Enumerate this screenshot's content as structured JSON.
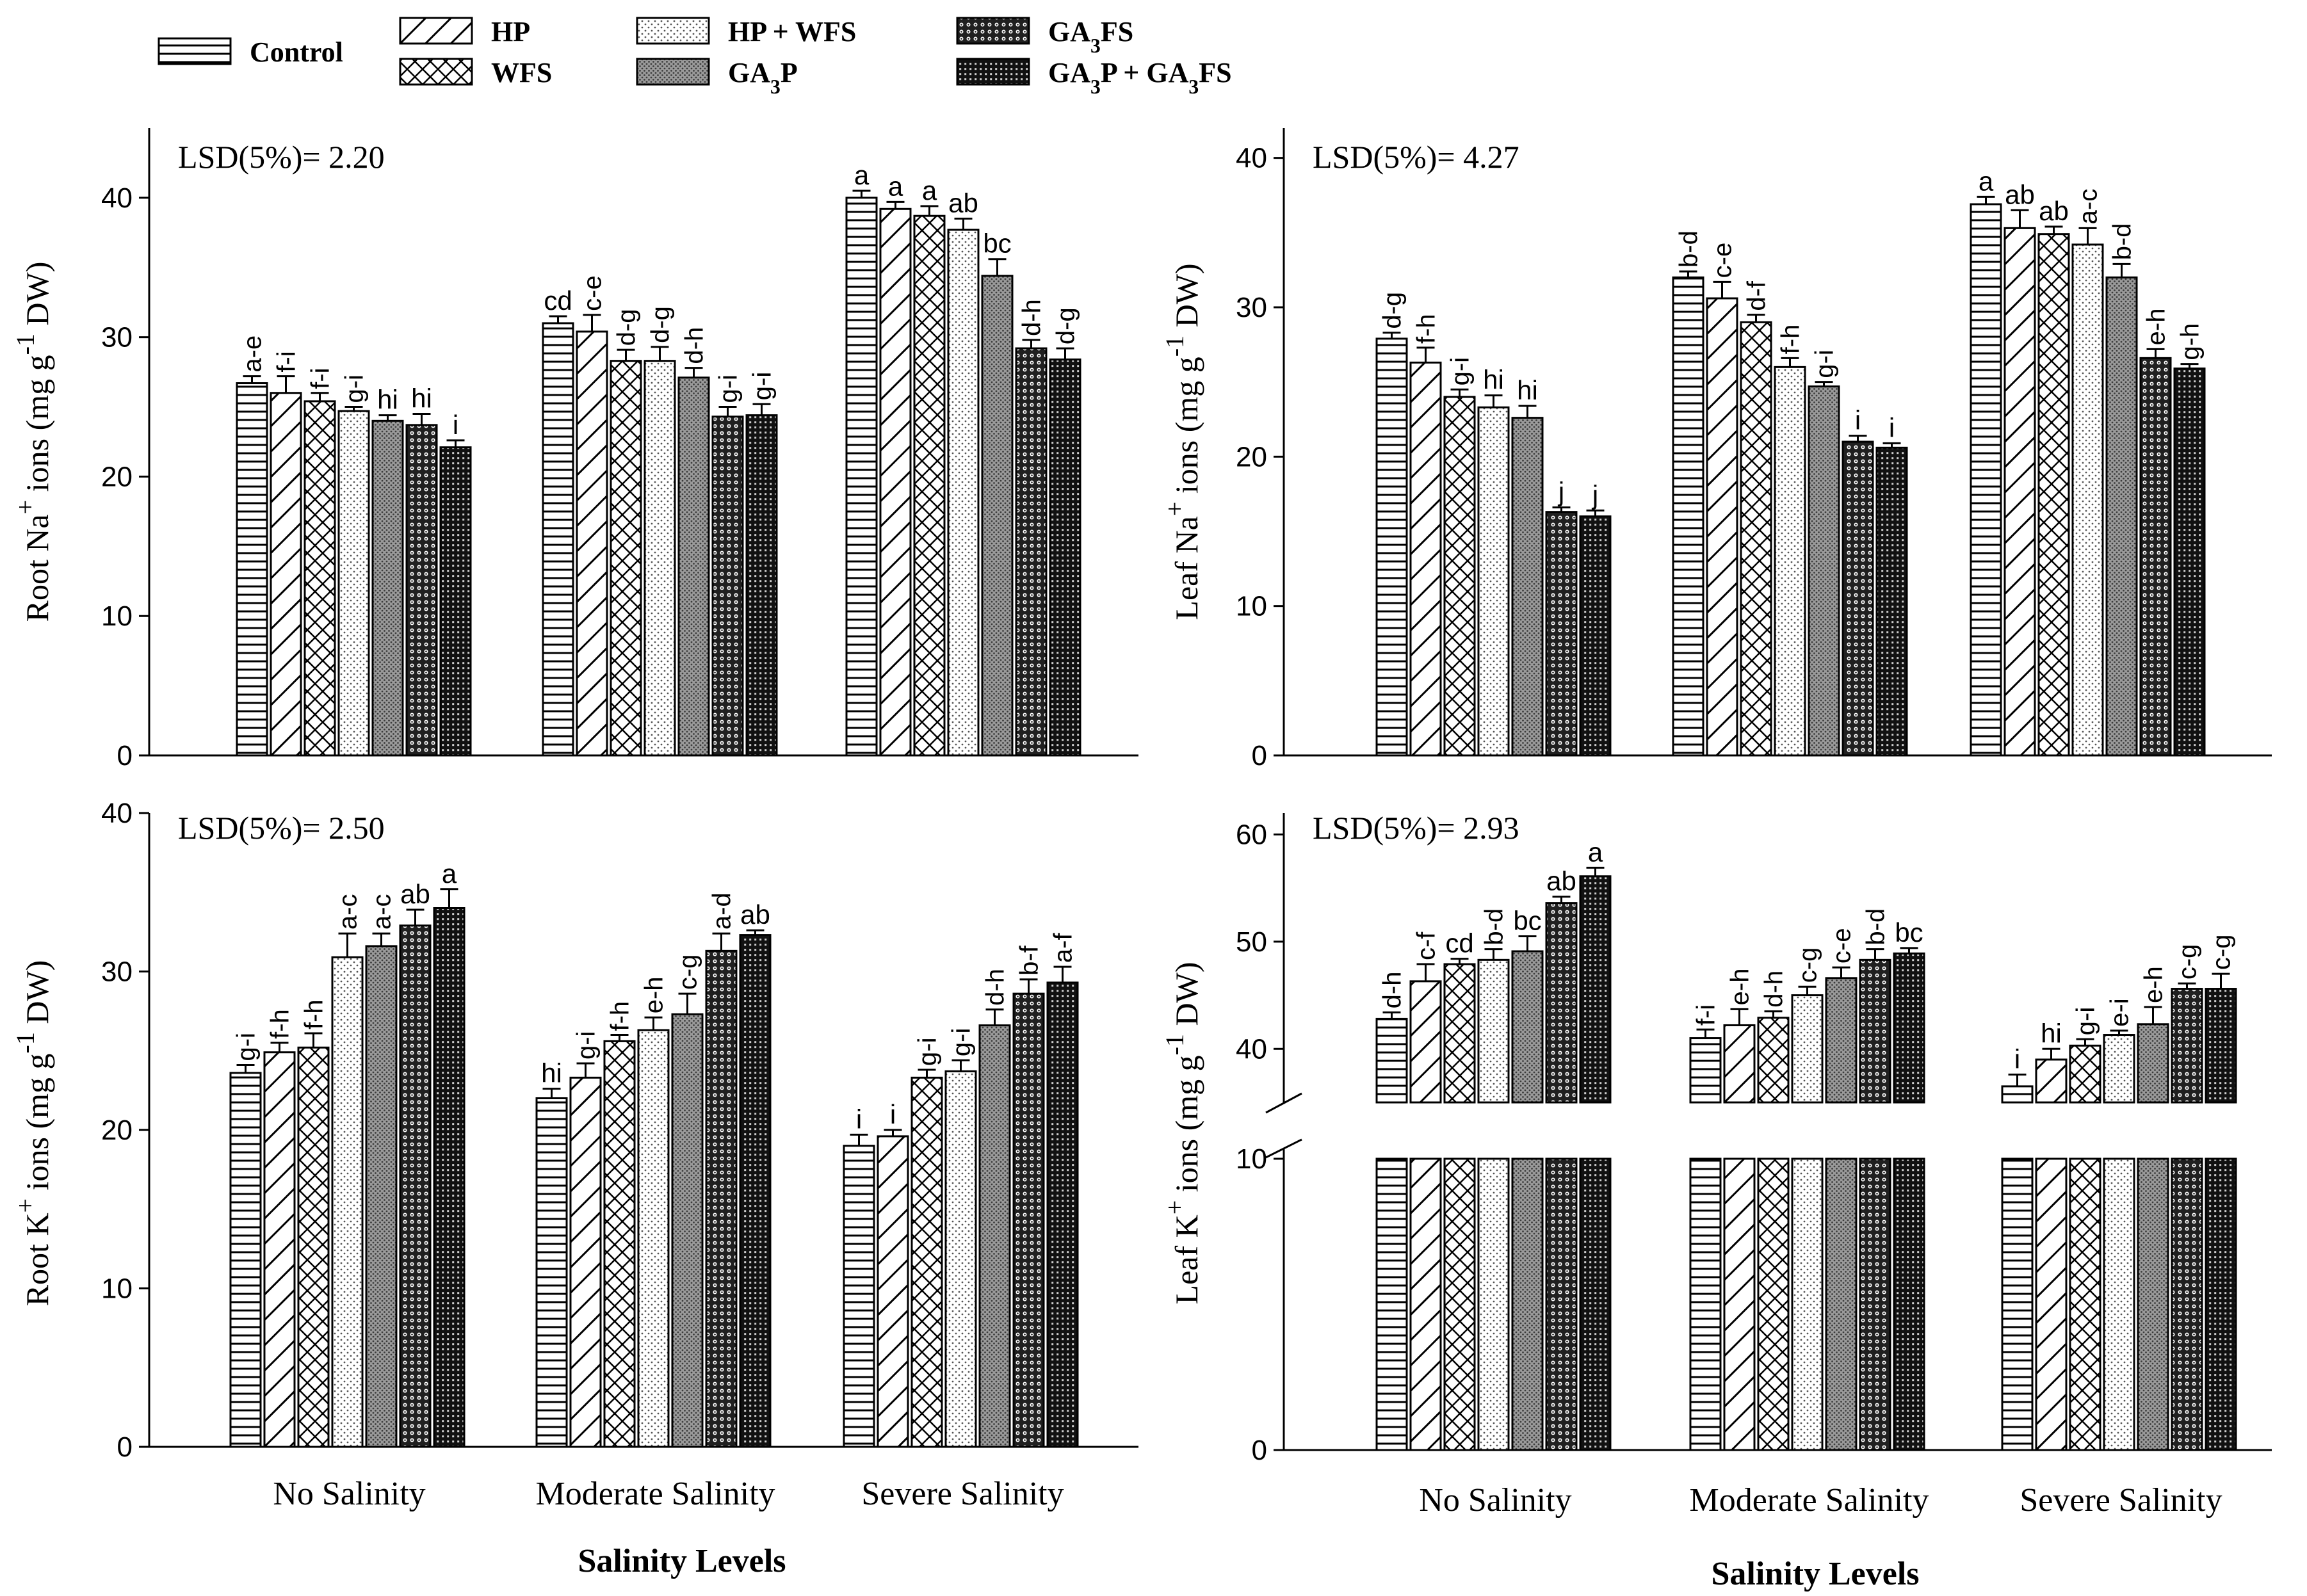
{
  "legend": {
    "items": [
      {
        "label": "Control",
        "pattern": "hlines"
      },
      {
        "label": "HP",
        "pattern": "diag"
      },
      {
        "label": "WFS",
        "pattern": "cross"
      },
      {
        "label": "HP + WFS",
        "pattern": "sparse-dots"
      },
      {
        "label": "GA3P",
        "pattern": "dense-dots"
      },
      {
        "label": "GA3FS",
        "pattern": "rings"
      },
      {
        "label": "GA3P + GA3FS",
        "pattern": "grid"
      }
    ]
  },
  "chart_data": [
    {
      "type": "bar",
      "panel": "root-na",
      "ylabel": "Root Na+ ions (mg g-1 DW)",
      "lsd": "LSD(5%)= 2.20",
      "xlabel": "",
      "categories": [
        "No Salinity",
        "Moderate Salinity",
        "Severe Salinity"
      ],
      "ylim": [
        0,
        45
      ],
      "yticks": [
        0,
        10,
        20,
        30,
        40
      ],
      "series": [
        {
          "name": "Control",
          "values": [
            26.7,
            31.0,
            40.0
          ],
          "errors": [
            0.5,
            0.5,
            0.5
          ],
          "letters": [
            "a-e",
            "cd",
            "a"
          ]
        },
        {
          "name": "HP",
          "values": [
            26.0,
            30.4,
            39.2
          ],
          "errors": [
            1.2,
            1.2,
            0.5
          ],
          "letters": [
            "f-i",
            "c-e",
            "a"
          ]
        },
        {
          "name": "WFS",
          "values": [
            25.4,
            28.3,
            38.7
          ],
          "errors": [
            0.6,
            0.8,
            0.7
          ],
          "letters": [
            "f-i",
            "d-g",
            "a"
          ]
        },
        {
          "name": "HP + WFS",
          "values": [
            24.7,
            28.3,
            37.7
          ],
          "errors": [
            0.3,
            1.0,
            0.8
          ],
          "letters": [
            "g-i",
            "d-g",
            "ab"
          ]
        },
        {
          "name": "GA3P",
          "values": [
            24.0,
            27.1,
            34.4
          ],
          "errors": [
            0.4,
            0.7,
            1.2
          ],
          "letters": [
            "hi",
            "d-h",
            "bc"
          ]
        },
        {
          "name": "GA3FS",
          "values": [
            23.7,
            24.3,
            29.2
          ],
          "errors": [
            0.8,
            0.7,
            0.6
          ],
          "letters": [
            "hi",
            "g-i",
            "d-h"
          ]
        },
        {
          "name": "GA3P + GA3FS",
          "values": [
            22.1,
            24.4,
            28.4
          ],
          "errors": [
            0.5,
            0.8,
            0.8
          ],
          "letters": [
            "i",
            "g-i",
            "d-g"
          ]
        }
      ]
    },
    {
      "type": "bar",
      "panel": "leaf-na",
      "ylabel": "Leaf Na+ ions (mg g-1 DW)",
      "lsd": "LSD(5%)= 4.27",
      "xlabel": "",
      "categories": [
        "No Salinity",
        "Moderate Salinity",
        "Severe Salinity"
      ],
      "ylim": [
        0,
        42
      ],
      "yticks": [
        0,
        10,
        20,
        30,
        40
      ],
      "series": [
        {
          "name": "Control",
          "values": [
            27.9,
            32.0,
            36.9
          ],
          "errors": [
            0.4,
            0.4,
            0.5
          ],
          "letters": [
            "d-g",
            "b-d",
            "a"
          ]
        },
        {
          "name": "HP",
          "values": [
            26.3,
            30.6,
            35.3
          ],
          "errors": [
            1.0,
            1.1,
            1.2
          ],
          "letters": [
            "f-h",
            "c-e",
            "ab"
          ]
        },
        {
          "name": "WFS",
          "values": [
            24.0,
            29.0,
            34.9
          ],
          "errors": [
            0.5,
            0.5,
            0.5
          ],
          "letters": [
            "g-i",
            "d-f",
            "ab"
          ]
        },
        {
          "name": "HP + WFS",
          "values": [
            23.3,
            26.0,
            34.2
          ],
          "errors": [
            0.8,
            0.6,
            1.1
          ],
          "letters": [
            "hi",
            "f-h",
            "a-c"
          ]
        },
        {
          "name": "GA3P",
          "values": [
            22.6,
            24.7,
            32.0
          ],
          "errors": [
            0.8,
            0.3,
            0.9
          ],
          "letters": [
            "hi",
            "g-i",
            "b-d"
          ]
        },
        {
          "name": "GA3FS",
          "values": [
            16.3,
            21.0,
            26.6
          ],
          "errors": [
            0.3,
            0.4,
            0.6
          ],
          "letters": [
            "j",
            "i",
            "e-h"
          ]
        },
        {
          "name": "GA3P + GA3FS",
          "values": [
            16.0,
            20.6,
            25.9
          ],
          "errors": [
            0.4,
            0.3,
            0.3
          ],
          "letters": [
            "j",
            "i",
            "g-h"
          ]
        }
      ]
    },
    {
      "type": "bar",
      "panel": "root-k",
      "ylabel": "Root K+ ions (mg g-1 DW)",
      "lsd": "LSD(5%)= 2.50",
      "xlabel": "Salinity Levels",
      "categories": [
        "No Salinity",
        "Moderate Salinity",
        "Severe Salinity"
      ],
      "ylim": [
        0,
        40
      ],
      "yticks": [
        0,
        10,
        20,
        30,
        40
      ],
      "series": [
        {
          "name": "Control",
          "values": [
            23.6,
            22.0,
            19.0
          ],
          "errors": [
            0.5,
            0.6,
            0.7
          ],
          "letters": [
            "g-i",
            "hi",
            "i"
          ]
        },
        {
          "name": "HP",
          "values": [
            24.9,
            23.3,
            19.6
          ],
          "errors": [
            0.6,
            0.9,
            0.4
          ],
          "letters": [
            "f-h",
            "g-i",
            "i"
          ]
        },
        {
          "name": "WFS",
          "values": [
            25.2,
            25.6,
            23.3
          ],
          "errors": [
            0.9,
            0.4,
            0.5
          ],
          "letters": [
            "f-h",
            "f-h",
            "g-i"
          ]
        },
        {
          "name": "HP + WFS",
          "values": [
            30.9,
            26.3,
            23.7
          ],
          "errors": [
            1.5,
            0.8,
            0.7
          ],
          "letters": [
            "a-c",
            "e-h",
            "g-i"
          ]
        },
        {
          "name": "GA3P",
          "values": [
            31.6,
            27.3,
            26.6
          ],
          "errors": [
            0.8,
            1.3,
            1.0
          ],
          "letters": [
            "a-c",
            "c-g",
            "d-h"
          ]
        },
        {
          "name": "GA3FS",
          "values": [
            32.9,
            31.3,
            28.6
          ],
          "errors": [
            1.0,
            1.1,
            0.9
          ],
          "letters": [
            "ab",
            "a-d",
            "b-f"
          ]
        },
        {
          "name": "GA3P + GA3FS",
          "values": [
            34.0,
            32.3,
            29.3
          ],
          "errors": [
            1.2,
            0.3,
            1.0
          ],
          "letters": [
            "a",
            "ab",
            "a-f"
          ]
        }
      ]
    },
    {
      "type": "bar",
      "panel": "leaf-k",
      "ylabel": "Leaf K+ ions (mg g-1 DW)",
      "lsd": "LSD(5%)= 2.93",
      "xlabel": "Salinity Levels",
      "categories": [
        "No Salinity",
        "Moderate Salinity",
        "Severe Salinity"
      ],
      "axis_break": [
        10,
        35
      ],
      "ylim": [
        0,
        62
      ],
      "yticks": [
        0,
        10,
        40,
        50,
        60
      ],
      "series": [
        {
          "name": "Control",
          "values": [
            42.8,
            41.0,
            36.5
          ],
          "errors": [
            0.6,
            0.8,
            1.1
          ],
          "letters": [
            "d-h",
            "f-i",
            "i"
          ]
        },
        {
          "name": "HP",
          "values": [
            46.3,
            42.2,
            39.0
          ],
          "errors": [
            1.6,
            1.5,
            1.0
          ],
          "letters": [
            "c-f",
            "e-h",
            "hi"
          ]
        },
        {
          "name": "WFS",
          "values": [
            47.9,
            42.9,
            40.3
          ],
          "errors": [
            0.5,
            0.6,
            0.6
          ],
          "letters": [
            "cd",
            "d-h",
            "g-i"
          ]
        },
        {
          "name": "HP + WFS",
          "values": [
            48.3,
            45.0,
            41.3
          ],
          "errors": [
            1.0,
            0.8,
            0.4
          ],
          "letters": [
            "b-d",
            "c-g",
            "e-i"
          ]
        },
        {
          "name": "GA3P",
          "values": [
            49.1,
            46.6,
            42.3
          ],
          "errors": [
            1.4,
            1.0,
            1.6
          ],
          "letters": [
            "bc",
            "c-e",
            "e-h"
          ]
        },
        {
          "name": "GA3FS",
          "values": [
            53.6,
            48.3,
            45.6
          ],
          "errors": [
            0.6,
            1.0,
            0.5
          ],
          "letters": [
            "ab",
            "b-d",
            "c-g"
          ]
        },
        {
          "name": "GA3P + GA3FS",
          "values": [
            56.1,
            48.9,
            45.6
          ],
          "errors": [
            0.8,
            0.5,
            1.4
          ],
          "letters": [
            "a",
            "bc",
            "c-g"
          ]
        }
      ]
    }
  ]
}
